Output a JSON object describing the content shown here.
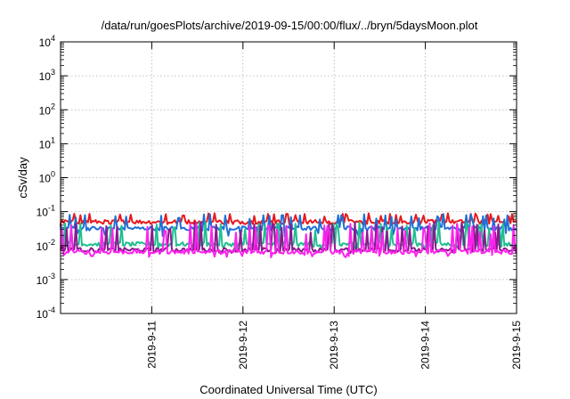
{
  "chart_data": {
    "type": "line",
    "title": "/data/run/goesPlots/archive/2019-09-15/00:00/flux/../bryn/5daysMoon.plot",
    "xlabel": "Coordinated Universal Time (UTC)",
    "ylabel": "cSv/day",
    "yscale": "log",
    "ylim": [
      0.0001,
      10000
    ],
    "xlim": [
      0,
      5
    ],
    "grid": true,
    "y_ticks": [
      {
        "base": "10",
        "exp": "-4",
        "value": 0.0001
      },
      {
        "base": "10",
        "exp": "-3",
        "value": 0.001
      },
      {
        "base": "10",
        "exp": "-2",
        "value": 0.01
      },
      {
        "base": "10",
        "exp": "-1",
        "value": 0.1
      },
      {
        "base": "10",
        "exp": "0",
        "value": 1
      },
      {
        "base": "10",
        "exp": "1",
        "value": 10
      },
      {
        "base": "10",
        "exp": "2",
        "value": 100
      },
      {
        "base": "10",
        "exp": "3",
        "value": 1000
      },
      {
        "base": "10",
        "exp": "4",
        "value": 10000
      }
    ],
    "x_ticks": [
      {
        "label": "2019-9-11",
        "x": 1
      },
      {
        "label": "2019-9-12",
        "x": 2
      },
      {
        "label": "2019-9-13",
        "x": 3
      },
      {
        "label": "2019-9-14",
        "x": 4
      },
      {
        "label": "2019-9-15",
        "x": 5
      }
    ],
    "series": [
      {
        "color": "#e8191c",
        "base": 0.05,
        "spike": 0.09,
        "dip": 0.042
      },
      {
        "color": "#1f6fd6",
        "base": 0.032,
        "spike": 0.085,
        "dip": 0.018
      },
      {
        "color": "#1fbf8f",
        "base": 0.011,
        "spike": 0.05,
        "dip": 0.008
      },
      {
        "color": "#8b1a8f",
        "base": 0.0075,
        "spike": 0.05,
        "dip": 0.006
      },
      {
        "color": "#ff22ee",
        "base": 0.0065,
        "spike": 0.045,
        "dip": 0.0045
      }
    ]
  }
}
